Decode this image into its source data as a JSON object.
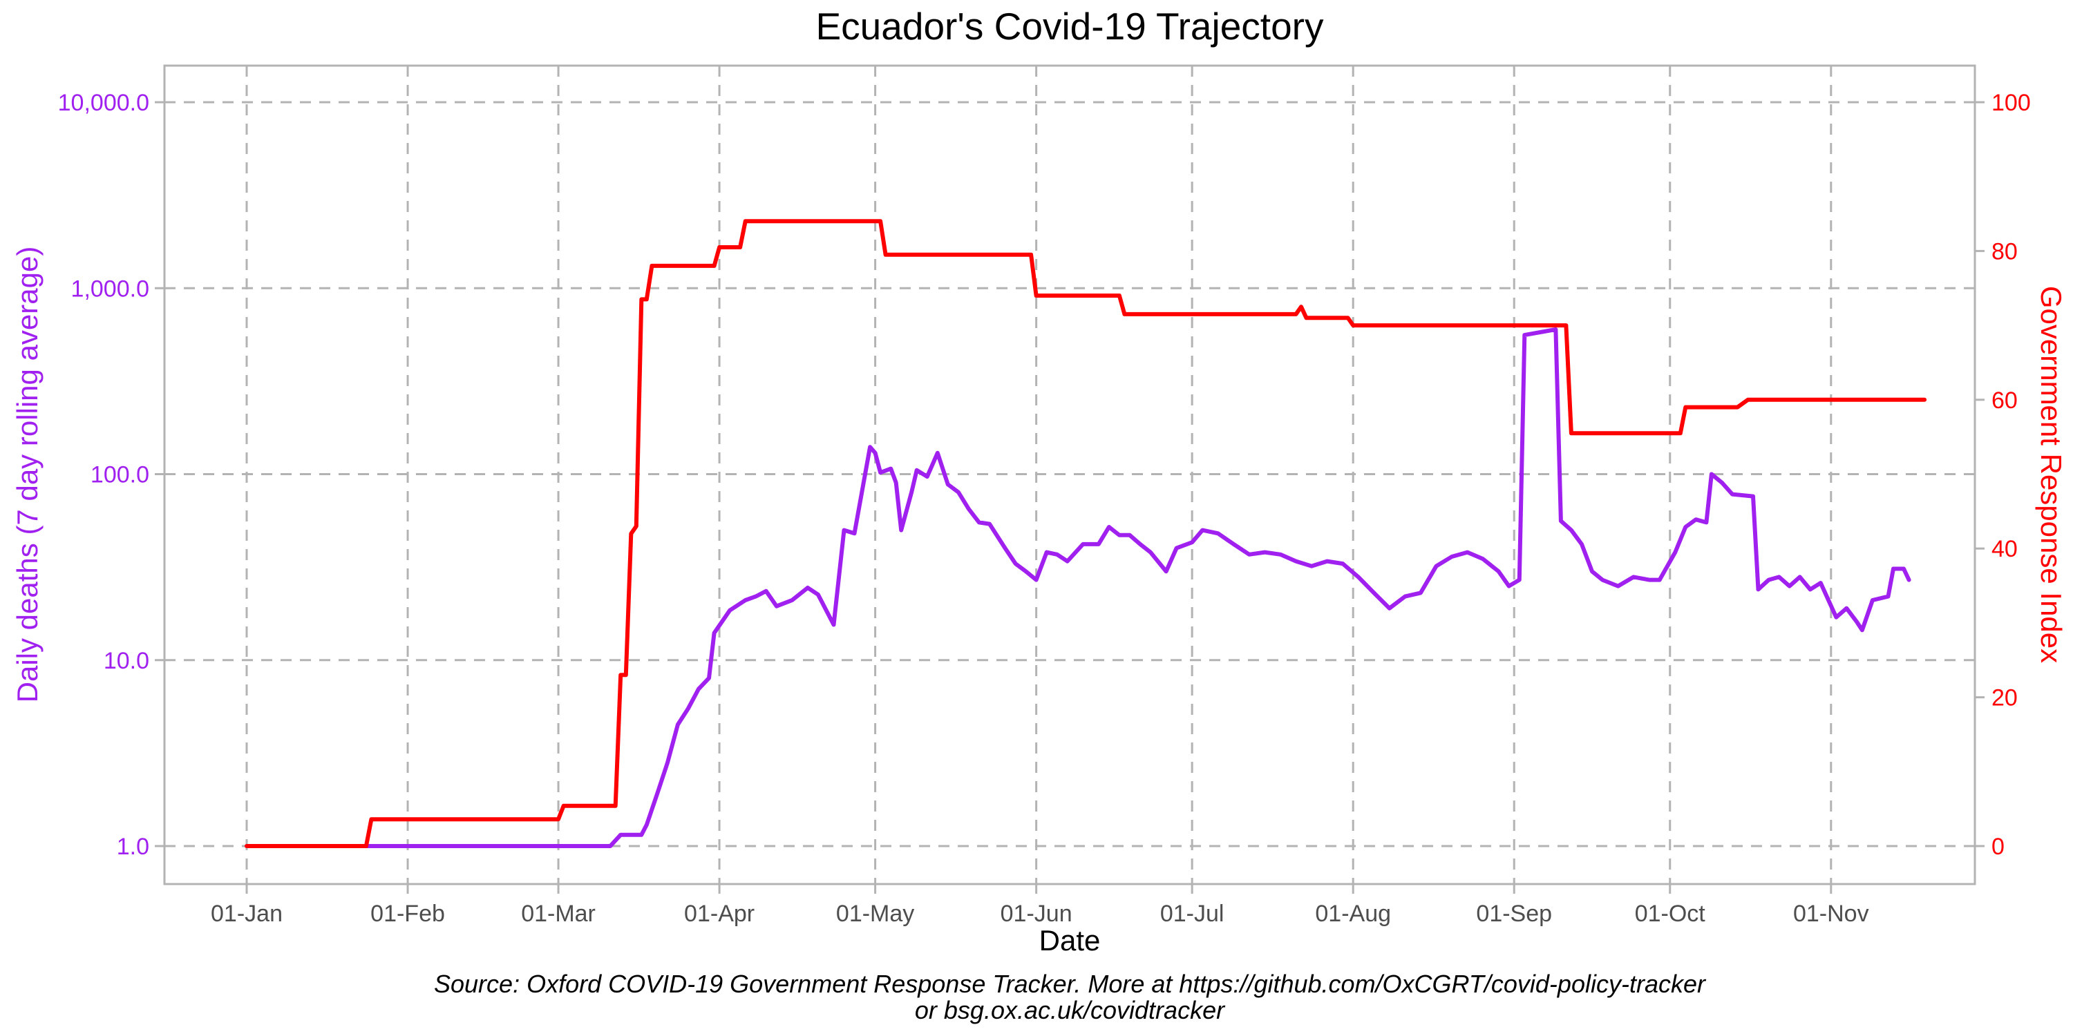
{
  "chart_data": {
    "type": "line",
    "title": "Ecuador's Covid-19 Trajectory",
    "xlabel": "Date",
    "ylabel_left": "Daily deaths (7 day rolling average)",
    "ylabel_right": "Government Response Index",
    "left_scale": "log10",
    "ylim_left": [
      1,
      10000
    ],
    "ylim_right": [
      0,
      100
    ],
    "x_range": [
      "2020-01-01",
      "2020-11-13"
    ],
    "x_ticks": [
      "01-Jan",
      "01-Feb",
      "01-Mar",
      "01-Apr",
      "01-May",
      "01-Jun",
      "01-Jul",
      "01-Aug",
      "01-Sep",
      "01-Oct",
      "01-Nov"
    ],
    "y_ticks_left": [
      "1.0",
      "10.0",
      "100.0",
      "1,000.0",
      "10,000.0"
    ],
    "y_ticks_right": [
      "0",
      "20",
      "40",
      "60",
      "80",
      "100"
    ],
    "grid": true,
    "series": [
      {
        "name": "Daily deaths (7 day rolling average)",
        "axis": "left",
        "color": "#a020f0",
        "points": [
          [
            "2020-01-01",
            1
          ],
          [
            "2020-03-11",
            1
          ],
          [
            "2020-03-13",
            1.15
          ],
          [
            "2020-03-17",
            1.15
          ],
          [
            "2020-03-18",
            1.3
          ],
          [
            "2020-03-20",
            1.9
          ],
          [
            "2020-03-22",
            2.8
          ],
          [
            "2020-03-24",
            4.5
          ],
          [
            "2020-03-26",
            5.5
          ],
          [
            "2020-03-28",
            7
          ],
          [
            "2020-03-30",
            8
          ],
          [
            "2020-03-31",
            14
          ],
          [
            "2020-04-03",
            18.5
          ],
          [
            "2020-04-06",
            21
          ],
          [
            "2020-04-08",
            22
          ],
          [
            "2020-04-10",
            23.5
          ],
          [
            "2020-04-12",
            19.5
          ],
          [
            "2020-04-15",
            21
          ],
          [
            "2020-04-18",
            24.5
          ],
          [
            "2020-04-20",
            22.5
          ],
          [
            "2020-04-23",
            15.5
          ],
          [
            "2020-04-25",
            50
          ],
          [
            "2020-04-27",
            48
          ],
          [
            "2020-04-30",
            140
          ],
          [
            "2020-05-01",
            130
          ],
          [
            "2020-05-02",
            102
          ],
          [
            "2020-05-04",
            107
          ],
          [
            "2020-05-05",
            90
          ],
          [
            "2020-05-06",
            50
          ],
          [
            "2020-05-08",
            80
          ],
          [
            "2020-05-09",
            105
          ],
          [
            "2020-05-11",
            97
          ],
          [
            "2020-05-13",
            130
          ],
          [
            "2020-05-15",
            88
          ],
          [
            "2020-05-17",
            80
          ],
          [
            "2020-05-19",
            65
          ],
          [
            "2020-05-21",
            55
          ],
          [
            "2020-05-23",
            54
          ],
          [
            "2020-05-26",
            40
          ],
          [
            "2020-05-28",
            33
          ],
          [
            "2020-05-30",
            30
          ],
          [
            "2020-06-01",
            27
          ],
          [
            "2020-06-03",
            38
          ],
          [
            "2020-06-05",
            37
          ],
          [
            "2020-06-07",
            34
          ],
          [
            "2020-06-10",
            42
          ],
          [
            "2020-06-13",
            42
          ],
          [
            "2020-06-15",
            52
          ],
          [
            "2020-06-17",
            47
          ],
          [
            "2020-06-19",
            47
          ],
          [
            "2020-06-21",
            42
          ],
          [
            "2020-06-23",
            38
          ],
          [
            "2020-06-26",
            30
          ],
          [
            "2020-06-28",
            40
          ],
          [
            "2020-07-01",
            43
          ],
          [
            "2020-07-03",
            50
          ],
          [
            "2020-07-06",
            48
          ],
          [
            "2020-07-09",
            42
          ],
          [
            "2020-07-12",
            37
          ],
          [
            "2020-07-15",
            38
          ],
          [
            "2020-07-18",
            37
          ],
          [
            "2020-07-21",
            34
          ],
          [
            "2020-07-24",
            32
          ],
          [
            "2020-07-27",
            34
          ],
          [
            "2020-07-30",
            33
          ],
          [
            "2020-08-02",
            28
          ],
          [
            "2020-08-05",
            23
          ],
          [
            "2020-08-08",
            19
          ],
          [
            "2020-08-11",
            22
          ],
          [
            "2020-08-14",
            23
          ],
          [
            "2020-08-17",
            32
          ],
          [
            "2020-08-20",
            36
          ],
          [
            "2020-08-23",
            38
          ],
          [
            "2020-08-26",
            35
          ],
          [
            "2020-08-29",
            30
          ],
          [
            "2020-08-31",
            25
          ],
          [
            "2020-09-02",
            27
          ],
          [
            "2020-09-03",
            560
          ],
          [
            "2020-09-09",
            600
          ],
          [
            "2020-09-10",
            56
          ],
          [
            "2020-09-12",
            50
          ],
          [
            "2020-09-14",
            42
          ],
          [
            "2020-09-16",
            30
          ],
          [
            "2020-09-18",
            27
          ],
          [
            "2020-09-21",
            25
          ],
          [
            "2020-09-24",
            28
          ],
          [
            "2020-09-27",
            27
          ],
          [
            "2020-09-29",
            27
          ],
          [
            "2020-10-02",
            38
          ],
          [
            "2020-10-04",
            52
          ],
          [
            "2020-10-06",
            57
          ],
          [
            "2020-10-08",
            55
          ],
          [
            "2020-10-09",
            100
          ],
          [
            "2020-10-11",
            90
          ],
          [
            "2020-10-13",
            78
          ],
          [
            "2020-10-17",
            76
          ],
          [
            "2020-10-18",
            24
          ],
          [
            "2020-10-20",
            27
          ],
          [
            "2020-10-22",
            28
          ],
          [
            "2020-10-24",
            25
          ],
          [
            "2020-10-26",
            28
          ],
          [
            "2020-10-28",
            24
          ],
          [
            "2020-10-30",
            26
          ],
          [
            "2020-11-02",
            17
          ],
          [
            "2020-11-04",
            19
          ],
          [
            "2020-11-06",
            16
          ],
          [
            "2020-11-07",
            14.5
          ],
          [
            "2020-11-09",
            21
          ],
          [
            "2020-11-12",
            22
          ],
          [
            "2020-11-13",
            31
          ],
          [
            "2020-11-15",
            31
          ],
          [
            "2020-11-16",
            27
          ]
        ]
      },
      {
        "name": "Government Response Index",
        "axis": "right",
        "color": "#ff0000",
        "points": [
          [
            "2020-01-01",
            0
          ],
          [
            "2020-01-24",
            0
          ],
          [
            "2020-01-25",
            3.6
          ],
          [
            "2020-03-01",
            3.6
          ],
          [
            "2020-03-02",
            5.4
          ],
          [
            "2020-03-12",
            5.4
          ],
          [
            "2020-03-13",
            23
          ],
          [
            "2020-03-14",
            23
          ],
          [
            "2020-03-15",
            42
          ],
          [
            "2020-03-16",
            43
          ],
          [
            "2020-03-17",
            73.5
          ],
          [
            "2020-03-18",
            73.5
          ],
          [
            "2020-03-19",
            78
          ],
          [
            "2020-03-31",
            78
          ],
          [
            "2020-04-01",
            80.5
          ],
          [
            "2020-04-05",
            80.5
          ],
          [
            "2020-04-06",
            84
          ],
          [
            "2020-05-02",
            84
          ],
          [
            "2020-05-03",
            79.5
          ],
          [
            "2020-05-31",
            79.5
          ],
          [
            "2020-06-01",
            74
          ],
          [
            "2020-06-17",
            74
          ],
          [
            "2020-06-18",
            71.5
          ],
          [
            "2020-07-21",
            71.5
          ],
          [
            "2020-07-22",
            72.5
          ],
          [
            "2020-07-23",
            71
          ],
          [
            "2020-07-31",
            71
          ],
          [
            "2020-08-01",
            70
          ],
          [
            "2020-09-11",
            70
          ],
          [
            "2020-09-12",
            55.5
          ],
          [
            "2020-10-03",
            55.5
          ],
          [
            "2020-10-04",
            59
          ],
          [
            "2020-10-14",
            59
          ],
          [
            "2020-10-16",
            60
          ],
          [
            "2020-11-19",
            60
          ]
        ]
      }
    ],
    "caption_line1": "Source: Oxford COVID-19 Government Response Tracker. More at https://github.com/OxCGRT/covid-policy-tracker",
    "caption_line2": "or bsg.ox.ac.uk/covidtracker"
  }
}
